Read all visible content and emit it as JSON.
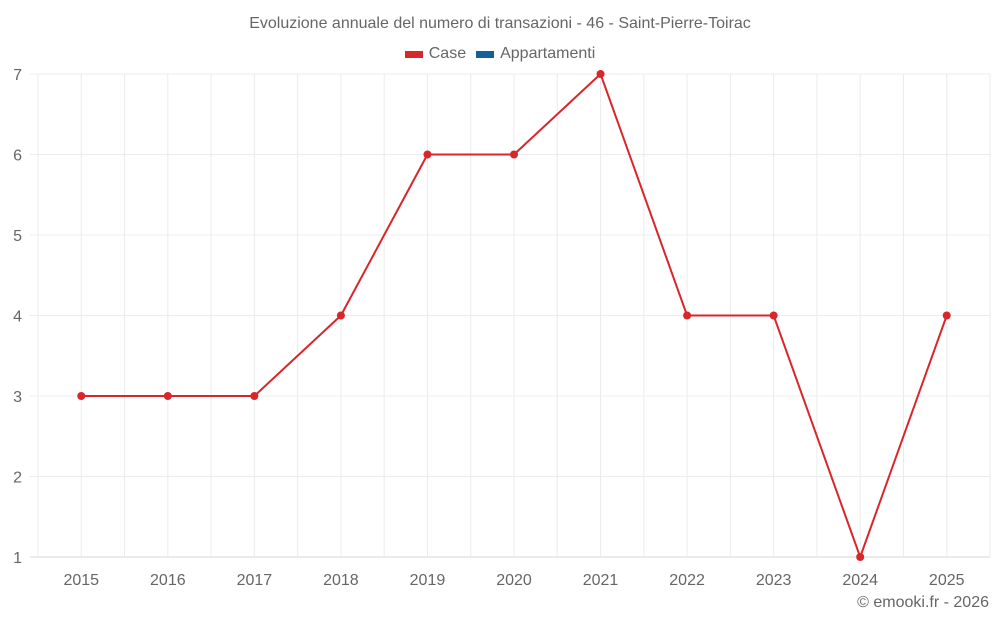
{
  "chart_data": {
    "type": "line",
    "title": "Evoluzione annuale del numero di transazioni - 46 - Saint-Pierre-Toirac",
    "xlabel": "",
    "ylabel": "",
    "categories": [
      "2015",
      "2016",
      "2017",
      "2018",
      "2019",
      "2020",
      "2021",
      "2022",
      "2023",
      "2024",
      "2025"
    ],
    "series": [
      {
        "name": "Case",
        "color": "#d9262b",
        "values": [
          3,
          3,
          3,
          4,
          6,
          6,
          7,
          4,
          4,
          1,
          4
        ]
      },
      {
        "name": "Appartamenti",
        "color": "#11609c",
        "values": []
      }
    ],
    "yticks": [
      1,
      2,
      3,
      4,
      5,
      6,
      7
    ],
    "ylim": [
      1,
      7
    ],
    "grid": true,
    "legend_position": "top"
  },
  "title": "Evoluzione annuale del numero di transazioni - 46 - Saint-Pierre-Toirac",
  "legend": [
    {
      "label": "Case",
      "color": "#d9262b"
    },
    {
      "label": "Appartamenti",
      "color": "#11609c"
    }
  ],
  "credit": "© emooki.fr - 2026"
}
